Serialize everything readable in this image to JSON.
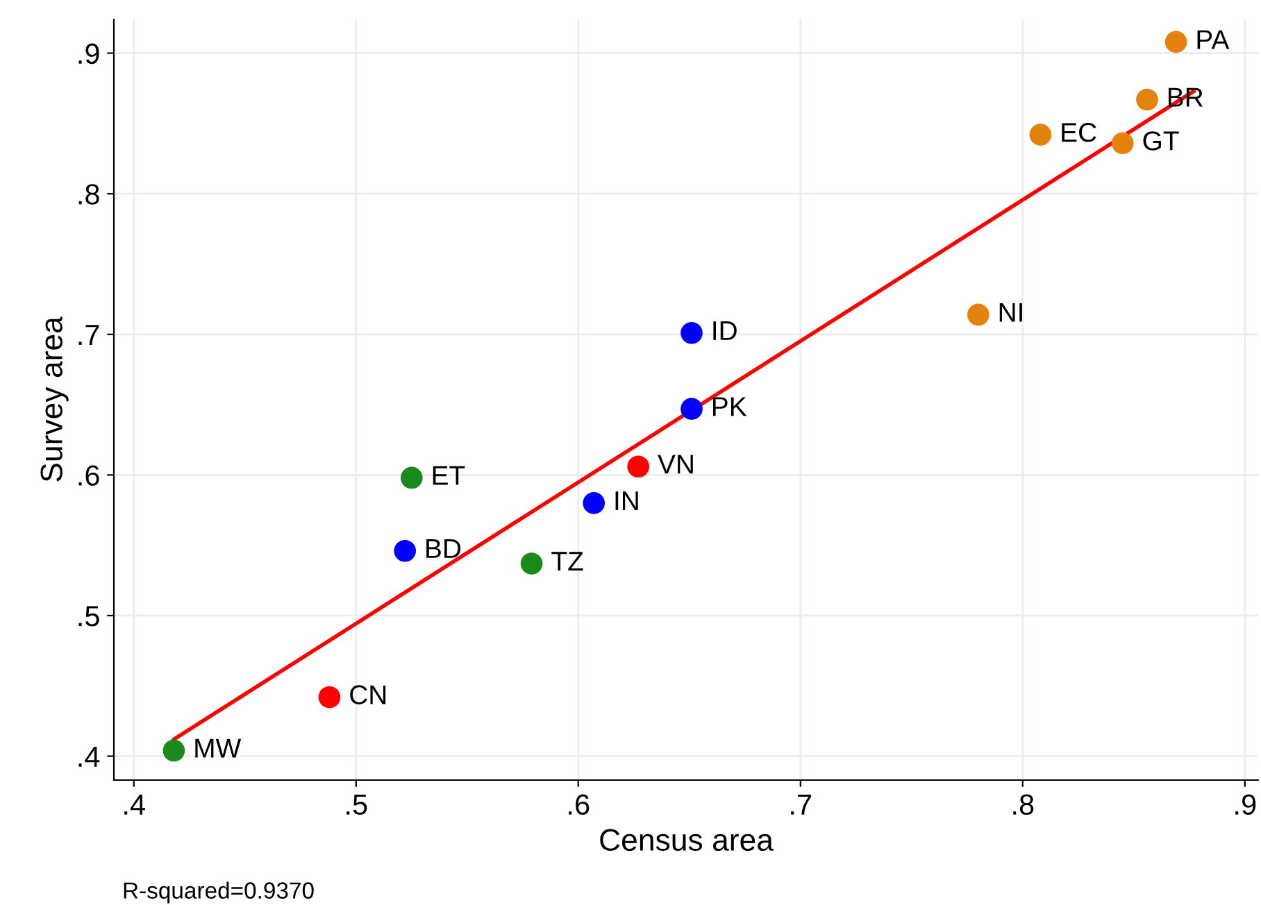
{
  "chart_data": {
    "type": "scatter",
    "xlabel": "Census area",
    "ylabel": "Survey area",
    "xlim": [
      0.391,
      0.906
    ],
    "ylim": [
      0.383,
      0.924
    ],
    "xticks": [
      {
        "value": 0.4,
        "label": ".4"
      },
      {
        "value": 0.5,
        "label": ".5"
      },
      {
        "value": 0.6,
        "label": ".6"
      },
      {
        "value": 0.7,
        "label": ".7"
      },
      {
        "value": 0.8,
        "label": ".8"
      },
      {
        "value": 0.9,
        "label": ".9"
      }
    ],
    "yticks": [
      {
        "value": 0.4,
        "label": ".4"
      },
      {
        "value": 0.5,
        "label": ".5"
      },
      {
        "value": 0.6,
        "label": ".6"
      },
      {
        "value": 0.7,
        "label": ".7"
      },
      {
        "value": 0.8,
        "label": ".8"
      },
      {
        "value": 0.9,
        "label": ".9"
      }
    ],
    "grid": true,
    "marker": "circle",
    "series": [
      {
        "color": "#e5820e",
        "x": [
          0.869,
          0.856,
          0.808,
          0.845,
          0.78
        ],
        "values": [
          0.908,
          0.867,
          0.842,
          0.836,
          0.714
        ]
      },
      {
        "color": "#0000ff",
        "x": [
          0.651,
          0.651,
          0.607,
          0.522
        ],
        "values": [
          0.701,
          0.647,
          0.58,
          0.546
        ]
      },
      {
        "color": "#1a8a1a",
        "x": [
          0.525,
          0.579,
          0.418
        ],
        "values": [
          0.598,
          0.537,
          0.404
        ]
      },
      {
        "color": "#ff0000",
        "x": [
          0.627,
          0.488
        ],
        "values": [
          0.606,
          0.442
        ]
      },
      {
        "type": "line",
        "color": "#ff0000",
        "x": [
          0.418,
          0.877
        ],
        "values": [
          0.412,
          0.873
        ],
        "marker": "none"
      }
    ],
    "annotations": [
      {
        "text": "PA",
        "x": 0.869,
        "y": 0.908
      },
      {
        "text": "BR",
        "x": 0.856,
        "y": 0.867
      },
      {
        "text": "EC",
        "x": 0.808,
        "y": 0.842
      },
      {
        "text": "GT",
        "x": 0.845,
        "y": 0.836
      },
      {
        "text": "NI",
        "x": 0.78,
        "y": 0.714
      },
      {
        "text": "ID",
        "x": 0.651,
        "y": 0.701
      },
      {
        "text": "PK",
        "x": 0.651,
        "y": 0.647
      },
      {
        "text": "IN",
        "x": 0.607,
        "y": 0.58
      },
      {
        "text": "BD",
        "x": 0.522,
        "y": 0.546
      },
      {
        "text": "ET",
        "x": 0.525,
        "y": 0.598
      },
      {
        "text": "TZ",
        "x": 0.579,
        "y": 0.537
      },
      {
        "text": "MW",
        "x": 0.418,
        "y": 0.404
      },
      {
        "text": "VN",
        "x": 0.627,
        "y": 0.606
      },
      {
        "text": "CN",
        "x": 0.488,
        "y": 0.442
      },
      "R-squared=0.9370"
    ]
  }
}
